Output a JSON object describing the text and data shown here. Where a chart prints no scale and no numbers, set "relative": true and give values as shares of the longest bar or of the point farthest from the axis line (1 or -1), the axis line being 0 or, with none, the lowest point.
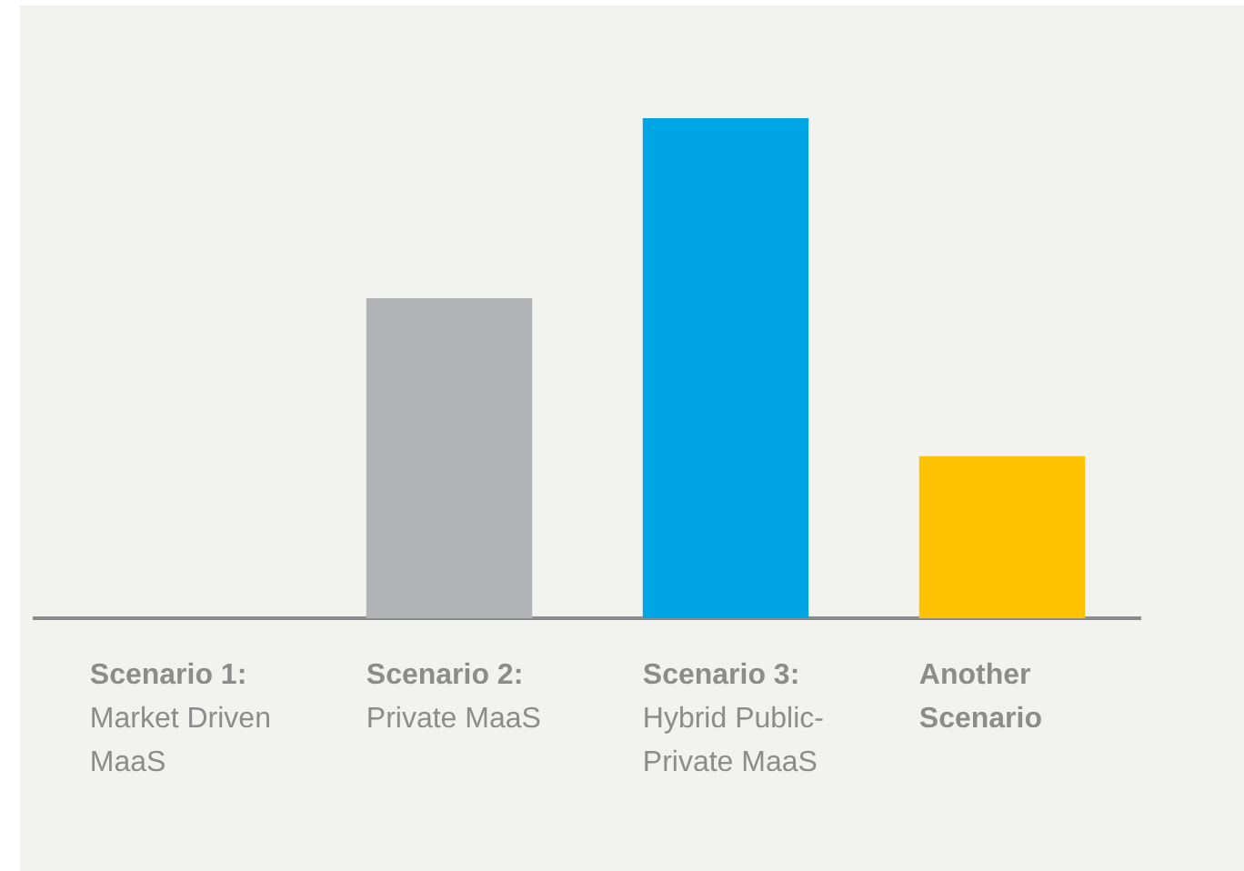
{
  "chart_data": {
    "type": "bar",
    "relative": true,
    "categories": [
      "Scenario 1: Market Driven MaaS",
      "Scenario 2: Private MaaS",
      "Scenario 3: Hybrid Public-Private MaaS",
      "Another Scenario"
    ],
    "values": [
      0,
      0.64,
      1,
      0.324
    ],
    "colors": [
      "#b1b2b5",
      "#b1b2b5",
      "#00a5e3",
      "#ffc200"
    ],
    "grid": false,
    "legend": false
  }
}
